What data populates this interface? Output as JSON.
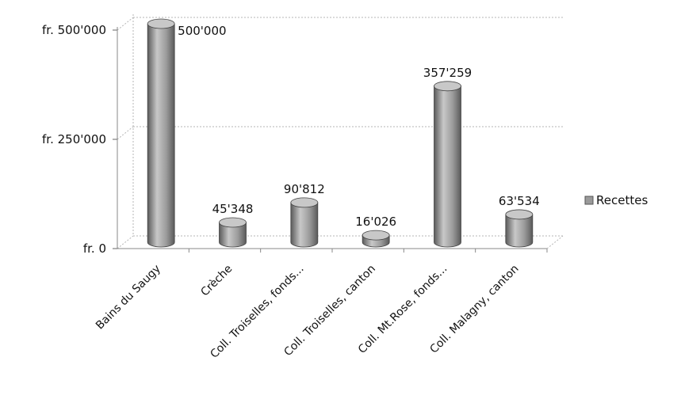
{
  "chart_data": {
    "type": "bar",
    "style": "3d-cylinder",
    "categories": [
      "Bains du Saugy",
      "Crèche",
      "Coll. Troiselles, fonds...",
      "Coll. Troiselles, canton",
      "Coll. Mt.Rose, fonds...",
      "Coll. Malagny, canton"
    ],
    "series": [
      {
        "name": "Recettes",
        "values": [
          500000,
          45348,
          90812,
          16026,
          357259,
          63534
        ],
        "labels": [
          "500'000",
          "45'348",
          "90'812",
          "16'026",
          "357'259",
          "63'534"
        ]
      }
    ],
    "ylim": [
      0,
      500000
    ],
    "yticks": [
      0,
      250000,
      500000
    ],
    "ytick_labels": [
      "fr. 0",
      "fr. 250'000",
      "fr. 500'000"
    ],
    "grid": true,
    "legend_position": "right",
    "colors": {
      "bar": "#9a9a9a",
      "bar_dark": "#5a5a5a",
      "bar_light": "#c8c8c8",
      "grid": "#b5b5b5"
    }
  }
}
